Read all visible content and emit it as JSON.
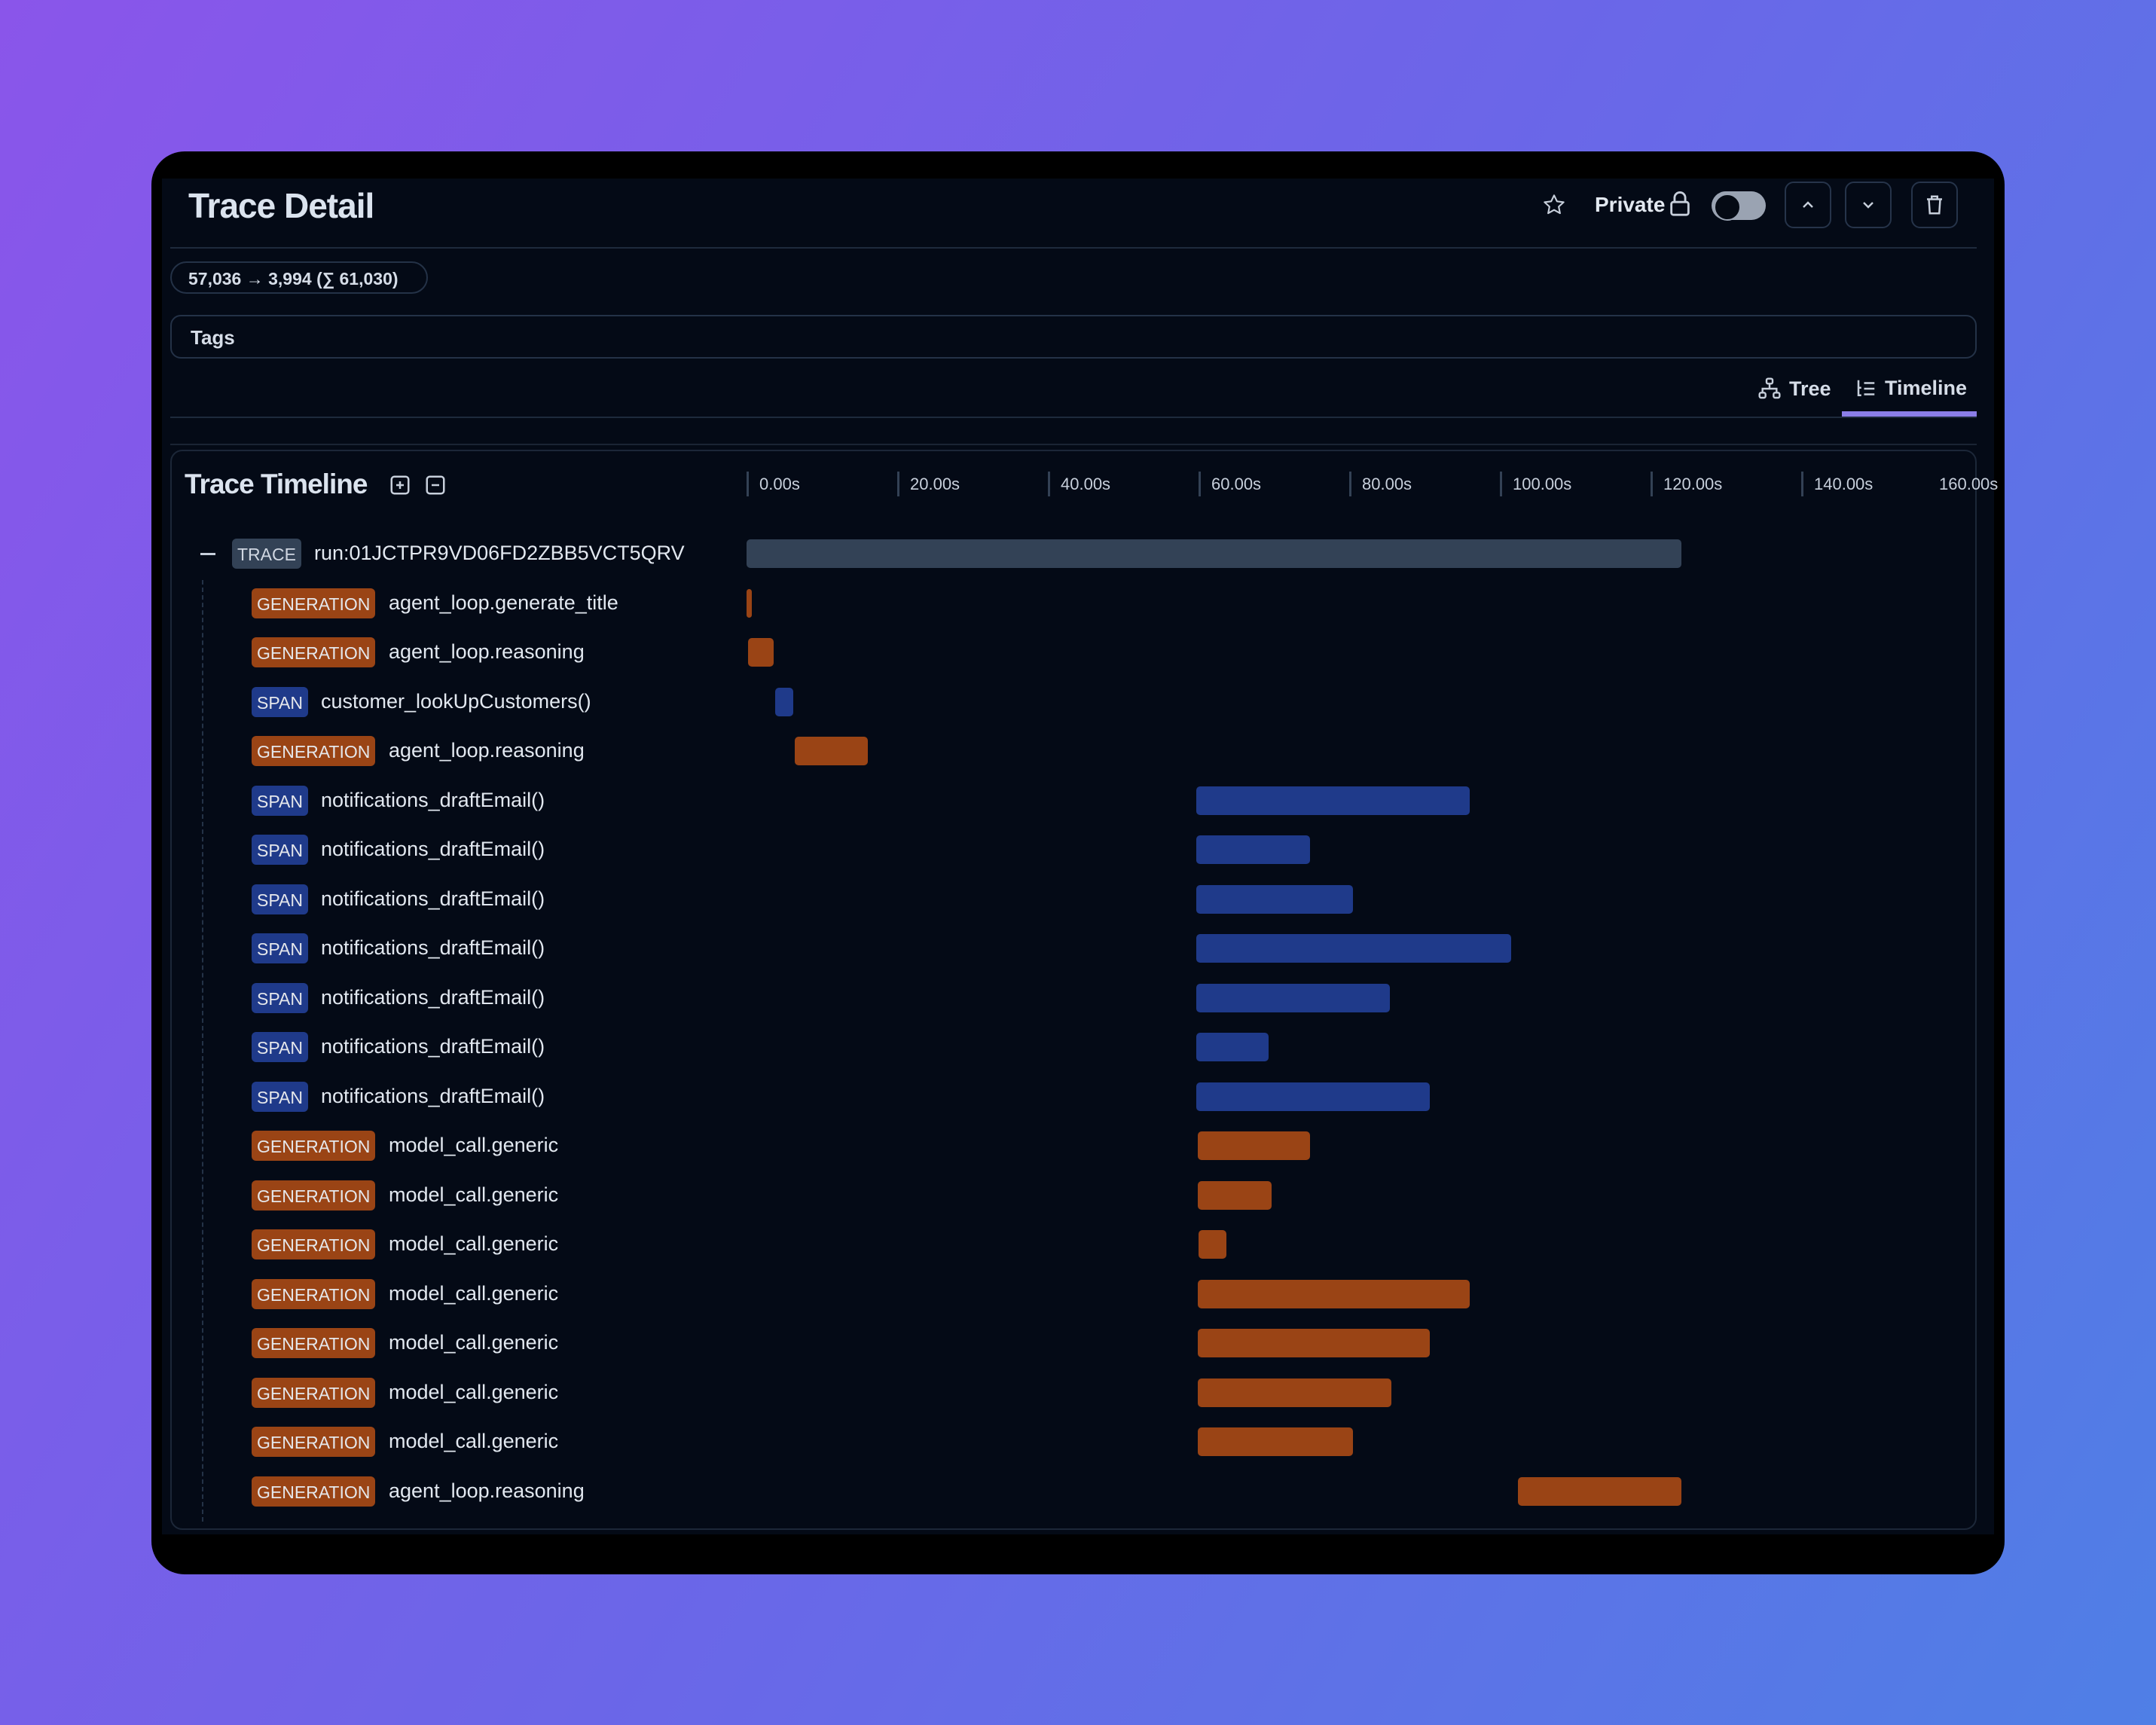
{
  "header": {
    "title": "Trace Detail",
    "private_label": "Private",
    "private_enabled": false
  },
  "usage_pill": "57,036 → 3,994 (∑ 61,030)",
  "tags_label": "Tags",
  "tabs": [
    {
      "label": "Tree",
      "icon": "tree-icon",
      "active": false
    },
    {
      "label": "Timeline",
      "icon": "timeline-icon",
      "active": true
    }
  ],
  "colors": {
    "generation": "#9a4415",
    "span": "#1f3a8a",
    "trace": "#334256",
    "active_tab": "#8b7ee8"
  },
  "timeline": {
    "title": "Trace Timeline",
    "axis_unit": "s",
    "ticks": [
      "0.00s",
      "20.00s",
      "40.00s",
      "60.00s",
      "80.00s",
      "100.00s",
      "120.00s",
      "140.00s",
      "160.00s"
    ],
    "rows": [
      {
        "type": "TRACE",
        "name": "run:01JCTPR9VD06FD2ZBB5VCT5QRV",
        "start": 0,
        "end": 124.1
      },
      {
        "type": "GENERATION",
        "name": "agent_loop.generate_title",
        "start": 0,
        "end": 0.7
      },
      {
        "type": "GENERATION",
        "name": "agent_loop.reasoning",
        "start": 0.2,
        "end": 3.6
      },
      {
        "type": "SPAN",
        "name": "customer_lookUpCustomers()",
        "start": 3.8,
        "end": 6.2
      },
      {
        "type": "GENERATION",
        "name": "agent_loop.reasoning",
        "start": 6.4,
        "end": 16.1
      },
      {
        "type": "SPAN",
        "name": "notifications_draftEmail()",
        "start": 59.7,
        "end": 96.0
      },
      {
        "type": "SPAN",
        "name": "notifications_draftEmail()",
        "start": 59.7,
        "end": 74.8
      },
      {
        "type": "SPAN",
        "name": "notifications_draftEmail()",
        "start": 59.7,
        "end": 80.5
      },
      {
        "type": "SPAN",
        "name": "notifications_draftEmail()",
        "start": 59.7,
        "end": 101.5
      },
      {
        "type": "SPAN",
        "name": "notifications_draftEmail()",
        "start": 59.7,
        "end": 85.4
      },
      {
        "type": "SPAN",
        "name": "notifications_draftEmail()",
        "start": 59.7,
        "end": 69.3
      },
      {
        "type": "SPAN",
        "name": "notifications_draftEmail()",
        "start": 59.7,
        "end": 90.7
      },
      {
        "type": "GENERATION",
        "name": "model_call.generic",
        "start": 59.9,
        "end": 74.8
      },
      {
        "type": "GENERATION",
        "name": "model_call.generic",
        "start": 59.9,
        "end": 69.7
      },
      {
        "type": "GENERATION",
        "name": "model_call.generic",
        "start": 60.0,
        "end": 63.7
      },
      {
        "type": "GENERATION",
        "name": "model_call.generic",
        "start": 59.9,
        "end": 96.0
      },
      {
        "type": "GENERATION",
        "name": "model_call.generic",
        "start": 59.9,
        "end": 90.7
      },
      {
        "type": "GENERATION",
        "name": "model_call.generic",
        "start": 59.9,
        "end": 85.6
      },
      {
        "type": "GENERATION",
        "name": "model_call.generic",
        "start": 59.9,
        "end": 80.5
      },
      {
        "type": "GENERATION",
        "name": "agent_loop.reasoning",
        "start": 102.4,
        "end": 124.1
      }
    ]
  }
}
